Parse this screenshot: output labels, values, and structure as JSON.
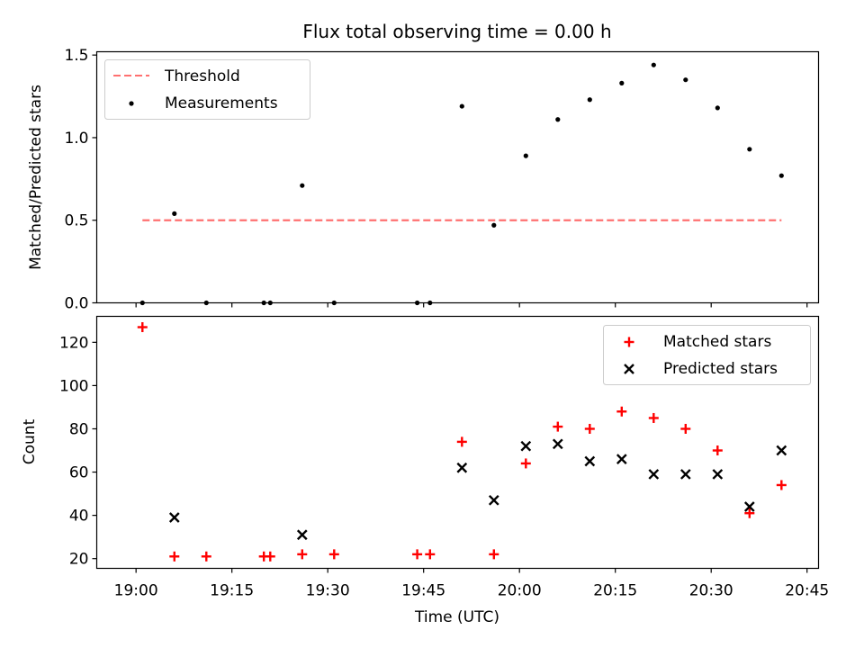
{
  "colors": {
    "threshold": "#ff7070",
    "measurement": "#000000",
    "matched": "#ff0000",
    "predicted": "#000000"
  },
  "chart_data": [
    {
      "type": "scatter",
      "title": "Flux total observing time = 0.00 h",
      "xlabel": "",
      "ylabel": "Matched/Predicted stars",
      "ylim": [
        0,
        1.52
      ],
      "yticks": [
        0.0,
        0.5,
        1.0,
        1.5
      ],
      "ytick_labels": [
        "0.0",
        "0.5",
        "1.0",
        "1.5"
      ],
      "legend_position": "top-left",
      "legend": [
        "Threshold",
        "Measurements"
      ],
      "threshold": {
        "name": "Threshold",
        "value": 0.5,
        "x_start": "19:01",
        "x_end": "20:41"
      },
      "series": [
        {
          "name": "Measurements",
          "points": [
            [
              "19:01",
              0.0
            ],
            [
              "19:06",
              0.54
            ],
            [
              "19:11",
              0.0
            ],
            [
              "19:20",
              0.0
            ],
            [
              "19:21",
              0.0
            ],
            [
              "19:26",
              0.71
            ],
            [
              "19:31",
              0.0
            ],
            [
              "19:44",
              0.0
            ],
            [
              "19:46",
              0.0
            ],
            [
              "19:51",
              1.19
            ],
            [
              "19:56",
              0.47
            ],
            [
              "20:01",
              0.89
            ],
            [
              "20:06",
              1.11
            ],
            [
              "20:11",
              1.23
            ],
            [
              "20:16",
              1.33
            ],
            [
              "20:21",
              1.44
            ],
            [
              "20:26",
              1.35
            ],
            [
              "20:31",
              1.18
            ],
            [
              "20:36",
              0.93
            ],
            [
              "20:41",
              0.77
            ]
          ]
        }
      ]
    },
    {
      "type": "scatter",
      "title": "",
      "xlabel": "Time (UTC)",
      "ylabel": "Count",
      "ylim": [
        15.5,
        132
      ],
      "yticks": [
        20,
        40,
        60,
        80,
        100,
        120
      ],
      "ytick_labels": [
        "20",
        "40",
        "60",
        "80",
        "100",
        "120"
      ],
      "xticks": [
        "19:00",
        "19:15",
        "19:30",
        "19:45",
        "20:00",
        "20:15",
        "20:30",
        "20:45"
      ],
      "xtick_labels": [
        "19:00",
        "19:15",
        "19:30",
        "19:45",
        "20:00",
        "20:15",
        "20:30",
        "20:45"
      ],
      "legend_position": "top-right",
      "legend": [
        "Matched stars",
        "Predicted stars"
      ],
      "series": [
        {
          "name": "Matched stars",
          "points": [
            [
              "19:01",
              127
            ],
            [
              "19:06",
              21
            ],
            [
              "19:11",
              21
            ],
            [
              "19:20",
              21
            ],
            [
              "19:21",
              21
            ],
            [
              "19:26",
              22
            ],
            [
              "19:31",
              22
            ],
            [
              "19:44",
              22
            ],
            [
              "19:46",
              22
            ],
            [
              "19:51",
              74
            ],
            [
              "19:56",
              22
            ],
            [
              "20:01",
              64
            ],
            [
              "20:06",
              81
            ],
            [
              "20:11",
              80
            ],
            [
              "20:16",
              88
            ],
            [
              "20:21",
              85
            ],
            [
              "20:26",
              80
            ],
            [
              "20:31",
              70
            ],
            [
              "20:36",
              41
            ],
            [
              "20:41",
              54
            ]
          ]
        },
        {
          "name": "Predicted stars",
          "points": [
            [
              "19:06",
              39
            ],
            [
              "19:26",
              31
            ],
            [
              "19:51",
              62
            ],
            [
              "19:56",
              47
            ],
            [
              "20:01",
              72
            ],
            [
              "20:06",
              73
            ],
            [
              "20:11",
              65
            ],
            [
              "20:16",
              66
            ],
            [
              "20:21",
              59
            ],
            [
              "20:26",
              59
            ],
            [
              "20:31",
              59
            ],
            [
              "20:36",
              44
            ],
            [
              "20:41",
              70
            ]
          ]
        }
      ]
    }
  ]
}
